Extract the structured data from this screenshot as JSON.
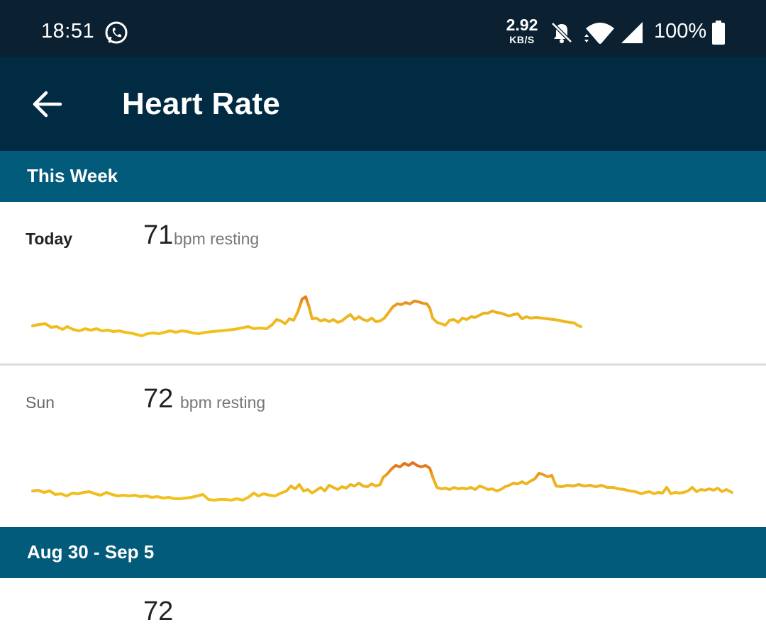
{
  "status_bar": {
    "time": "18:51",
    "net_speed_value": "2.92",
    "net_speed_unit": "KB/S",
    "battery": "100%",
    "icons": [
      "whatsapp-icon",
      "bell-off-icon",
      "wifi-icon",
      "signal-icon",
      "battery-icon"
    ]
  },
  "app_bar": {
    "title": "Heart Rate",
    "back_icon": "arrow-left-icon"
  },
  "sections": [
    {
      "title": "This Week",
      "days": [
        {
          "label": "Today",
          "bpm": "71",
          "unit": "bpm resting"
        },
        {
          "label": "Sun",
          "bpm": "72",
          "unit": "bpm resting"
        }
      ]
    },
    {
      "title": "Aug 30 - Sep 5",
      "days": [
        {
          "label": "",
          "bpm": "72",
          "unit": ""
        }
      ]
    }
  ],
  "colors": {
    "status_bar": "#0b2131",
    "app_bar": "#012a43",
    "section_header": "#025b7a",
    "line_low": "#f2c51f",
    "line_high": "#e2681c"
  }
}
